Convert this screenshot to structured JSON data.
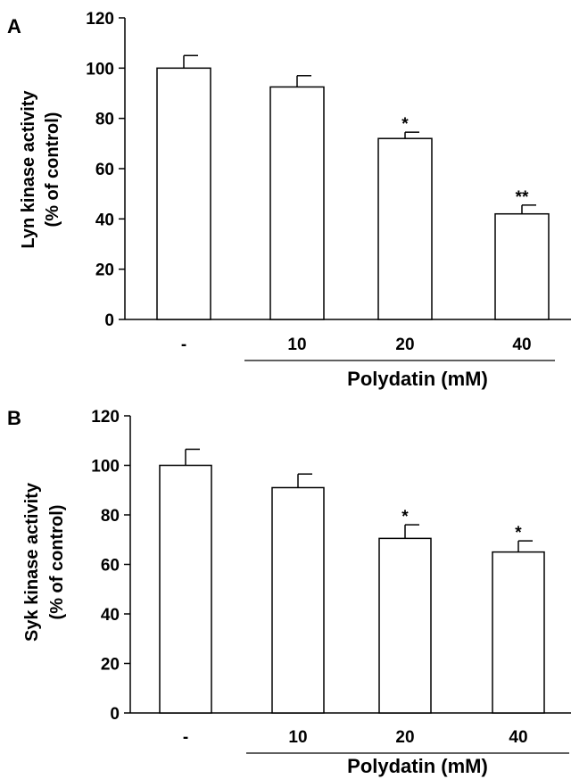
{
  "chart_data": [
    {
      "type": "bar",
      "panel_label": "A",
      "ylabel_lines": [
        "Lyn kinase activity",
        "(% of control)"
      ],
      "ylim": [
        0,
        120
      ],
      "yticks": [
        "0",
        "20",
        "40",
        "60",
        "80",
        "100",
        "120"
      ],
      "categories": [
        "-",
        "10",
        "20",
        "40"
      ],
      "values": [
        100,
        92.5,
        72,
        42
      ],
      "errors": [
        5,
        4.5,
        2.5,
        3.5
      ],
      "significance": [
        "",
        "",
        "*",
        "**"
      ],
      "group_label": "Polydatin (mM)"
    },
    {
      "type": "bar",
      "panel_label": "B",
      "ylabel_lines": [
        "Syk kinase activity",
        "(% of control)"
      ],
      "ylim": [
        0,
        120
      ],
      "yticks": [
        "0",
        "20",
        "40",
        "60",
        "80",
        "100",
        "120"
      ],
      "categories": [
        "-",
        "10",
        "20",
        "40"
      ],
      "values": [
        100,
        91,
        70.5,
        65
      ],
      "errors": [
        6.5,
        5.5,
        5.5,
        4.5
      ],
      "significance": [
        "",
        "",
        "*",
        "*"
      ],
      "group_label": "Polydatin (mM)"
    }
  ]
}
